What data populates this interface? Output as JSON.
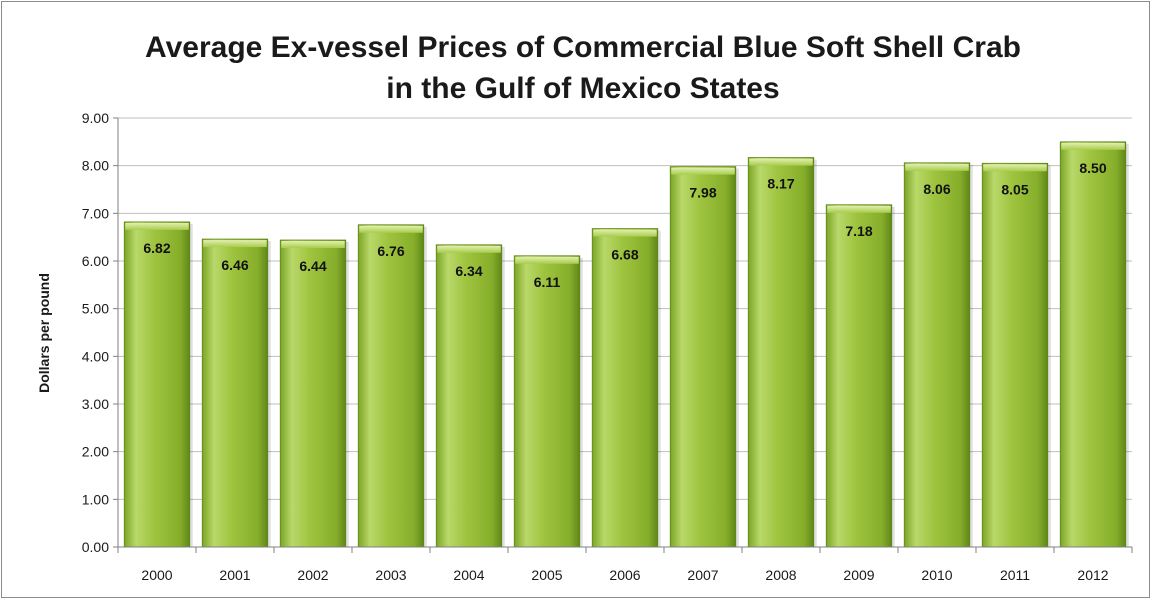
{
  "chart_data": {
    "type": "bar",
    "title": [
      "Average Ex-vessel Prices of Commercial Blue Soft Shell Crab",
      "in the Gulf of Mexico States"
    ],
    "ylabel": "Dollars per pound",
    "xlabel": "",
    "categories": [
      "2000",
      "2001",
      "2002",
      "2003",
      "2004",
      "2005",
      "2006",
      "2007",
      "2008",
      "2009",
      "2010",
      "2011",
      "2012"
    ],
    "values": [
      6.82,
      6.46,
      6.44,
      6.76,
      6.34,
      6.11,
      6.68,
      7.98,
      8.17,
      7.18,
      8.06,
      8.05,
      8.5
    ],
    "value_labels": [
      "6.82",
      "6.46",
      "6.44",
      "6.76",
      "6.34",
      "6.11",
      "6.68",
      "7.98",
      "8.17",
      "7.18",
      "8.06",
      "8.05",
      "8.50"
    ],
    "ylim": [
      0,
      9
    ],
    "yticks": [
      "0.00",
      "1.00",
      "2.00",
      "3.00",
      "4.00",
      "5.00",
      "6.00",
      "7.00",
      "8.00",
      "9.00"
    ],
    "grid": true,
    "legend": "none",
    "colors": {
      "bar_light": "#c8e07e",
      "bar_mid": "#9cc23c",
      "bar_dark": "#6f9a1e",
      "grid": "#bfbfbf"
    }
  }
}
